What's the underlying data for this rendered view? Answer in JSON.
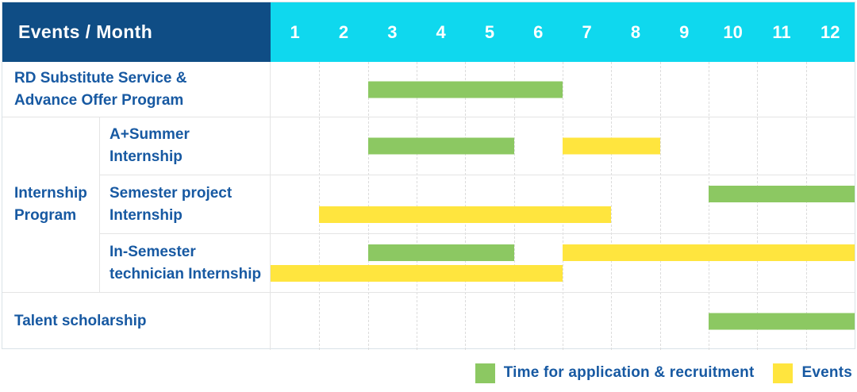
{
  "colors": {
    "navy": "#0f4d85",
    "cyan": "#0fd8ee",
    "text_blue": "#1759a2",
    "green": "#8cc862",
    "yellow": "#ffe53e",
    "grid": "#e4e4e4"
  },
  "header": {
    "title": "Events / Month",
    "months": [
      "1",
      "2",
      "3",
      "4",
      "5",
      "6",
      "7",
      "8",
      "9",
      "10",
      "11",
      "12"
    ]
  },
  "group": {
    "label": "Internship Program",
    "label_lines": [
      "Internship",
      "Program"
    ]
  },
  "chart_data": {
    "type": "gantt",
    "x_axis": {
      "label": "Month",
      "ticks": [
        1,
        2,
        3,
        4,
        5,
        6,
        7,
        8,
        9,
        10,
        11,
        12
      ],
      "range": [
        1,
        12
      ]
    },
    "color_meaning": {
      "green": "Time for application & recruitment",
      "yellow": "Events"
    },
    "rows": [
      {
        "label": "RD Substitute Service & Advance Offer Program",
        "label_lines": [
          "RD Substitute Service &",
          "Advance Offer Program"
        ],
        "group": null,
        "lines": [
          [
            {
              "color": "green",
              "start": 3,
              "end": 6
            }
          ]
        ]
      },
      {
        "label": "A+Summer Internship",
        "label_lines": [
          "A+Summer",
          "Internship"
        ],
        "group": "Internship Program",
        "lines": [
          [
            {
              "color": "green",
              "start": 3,
              "end": 5
            },
            {
              "color": "yellow",
              "start": 7,
              "end": 8
            }
          ]
        ]
      },
      {
        "label": "Semester project Internship",
        "label_lines": [
          "Semester project",
          "Internship"
        ],
        "group": "Internship Program",
        "lines": [
          [
            {
              "color": "green",
              "start": 10,
              "end": 12
            }
          ],
          [
            {
              "color": "yellow",
              "start": 2,
              "end": 7
            }
          ]
        ]
      },
      {
        "label": "In-Semester technician Internship",
        "label_lines": [
          "In-Semester",
          "technician Internship"
        ],
        "group": "Internship Program",
        "lines": [
          [
            {
              "color": "green",
              "start": 3,
              "end": 5
            },
            {
              "color": "yellow",
              "start": 7,
              "end": 12
            }
          ],
          [
            {
              "color": "yellow",
              "start": 1,
              "end": 6
            }
          ]
        ]
      },
      {
        "label": "Talent scholarship",
        "label_lines": [
          "Talent scholarship"
        ],
        "group": null,
        "lines": [
          [
            {
              "color": "green",
              "start": 10,
              "end": 12
            }
          ]
        ]
      }
    ],
    "legend": [
      {
        "color": "green",
        "label": "Time for application & recruitment"
      },
      {
        "color": "yellow",
        "label": "Events"
      }
    ]
  }
}
